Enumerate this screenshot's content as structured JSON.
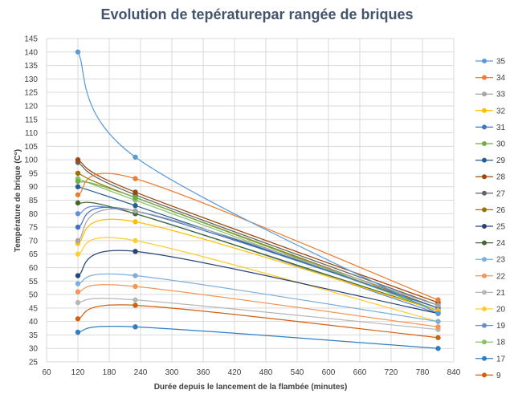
{
  "chart_data": {
    "type": "scatter",
    "title": "Evolution de tepératurepar rangée de briques",
    "xlabel": "Durée depuis le lancement de la flambée (minutes)",
    "ylabel": "Température de brique (C°)",
    "xlim": [
      60,
      840
    ],
    "ylim": [
      25,
      145
    ],
    "x_ticks": [
      60,
      120,
      180,
      240,
      300,
      360,
      420,
      480,
      540,
      600,
      660,
      720,
      780,
      840
    ],
    "y_ticks": [
      25,
      30,
      35,
      40,
      45,
      50,
      55,
      60,
      65,
      70,
      75,
      80,
      85,
      90,
      95,
      100,
      105,
      110,
      115,
      120,
      125,
      130,
      135,
      140,
      145
    ],
    "grid": true,
    "legend_position": "right",
    "x": [
      120,
      230,
      810
    ],
    "series": [
      {
        "name": "35",
        "color": "#5b9bd5",
        "values": [
          140,
          101,
          43
        ]
      },
      {
        "name": "34",
        "color": "#ed7d31",
        "values": [
          87,
          93,
          48
        ]
      },
      {
        "name": "33",
        "color": "#a5a5a5",
        "values": [
          70,
          81,
          46
        ]
      },
      {
        "name": "32",
        "color": "#ffc000",
        "values": [
          69,
          77,
          44
        ]
      },
      {
        "name": "31",
        "color": "#4472c4",
        "values": [
          75,
          81,
          45
        ]
      },
      {
        "name": "30",
        "color": "#70ad47",
        "values": [
          92,
          86,
          44
        ]
      },
      {
        "name": "29",
        "color": "#255e91",
        "values": [
          90,
          83,
          45
        ]
      },
      {
        "name": "28",
        "color": "#9e480e",
        "values": [
          100,
          88,
          47
        ]
      },
      {
        "name": "27",
        "color": "#636363",
        "values": [
          99,
          87,
          46
        ]
      },
      {
        "name": "26",
        "color": "#997300",
        "values": [
          95,
          86,
          45
        ]
      },
      {
        "name": "25",
        "color": "#264478",
        "values": [
          57,
          66,
          43
        ]
      },
      {
        "name": "24",
        "color": "#43682b",
        "values": [
          84,
          80,
          44
        ]
      },
      {
        "name": "23",
        "color": "#7cafdd",
        "values": [
          54,
          57,
          40
        ]
      },
      {
        "name": "22",
        "color": "#f1975a",
        "values": [
          51,
          53,
          38
        ]
      },
      {
        "name": "21",
        "color": "#b7b7b7",
        "values": [
          47,
          48,
          37
        ]
      },
      {
        "name": "20",
        "color": "#ffcd33",
        "values": [
          65,
          70,
          40
        ]
      },
      {
        "name": "19",
        "color": "#698ed0",
        "values": [
          80,
          80,
          43
        ]
      },
      {
        "name": "18",
        "color": "#8cc168",
        "values": [
          93,
          85,
          44
        ]
      },
      {
        "name": "17",
        "color": "#327dc2",
        "values": [
          36,
          38,
          30
        ]
      },
      {
        "name": "9",
        "color": "#d26012",
        "values": [
          41,
          46,
          34
        ]
      }
    ]
  }
}
